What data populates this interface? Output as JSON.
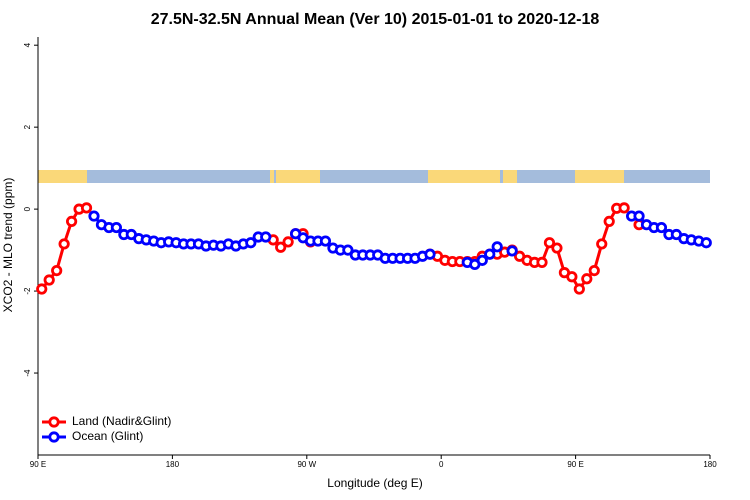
{
  "chart_data": {
    "type": "line",
    "title": "27.5N-32.5N Annual Mean (Ver 10)   2015-01-01 to 2020-12-18",
    "x_label": "Longitude (deg E)",
    "y_label": "XCO2 - MLO trend (ppm)",
    "x": [
      92.5,
      97.5,
      102.5,
      107.5,
      112.5,
      117.5,
      122.5,
      127.5,
      132.5,
      137.5,
      142.5,
      147.5,
      152.5,
      157.5,
      162.5,
      167.5,
      172.5,
      177.5,
      182.5,
      187.5,
      192.5,
      197.5,
      202.5,
      207.5,
      212.5,
      217.5,
      222.5,
      227.5,
      232.5,
      237.5,
      242.5,
      247.5,
      252.5,
      257.5,
      262.5,
      267.5,
      272.5,
      277.5,
      282.5,
      287.5,
      292.5,
      297.5,
      302.5,
      307.5,
      312.5,
      317.5,
      322.5,
      327.5,
      332.5,
      337.5,
      342.5,
      347.5,
      352.5,
      357.5,
      362.5,
      367.5,
      372.5,
      377.5,
      382.5,
      387.5,
      392.5,
      397.5,
      402.5,
      407.5,
      412.5,
      417.5,
      422.5,
      427.5,
      432.5,
      437.5,
      442.5,
      447.5,
      452.5,
      457.5,
      462.5,
      467.5,
      472.5,
      477.5,
      482.5,
      487.5,
      492.5,
      497.5,
      502.5,
      507.5,
      512.5,
      517.5,
      522.5,
      527.5,
      532.5,
      537.5
    ],
    "series": [
      {
        "name": "Land (Nadir&Glint)",
        "color": "#ff0000",
        "values": [
          -1.95,
          -1.73,
          -1.5,
          -0.85,
          -0.3,
          0.0,
          0.03,
          null,
          null,
          null,
          null,
          null,
          null,
          null,
          null,
          null,
          null,
          null,
          null,
          null,
          null,
          null,
          null,
          null,
          null,
          null,
          null,
          null,
          null,
          null,
          null,
          -0.75,
          -0.93,
          -0.8,
          -0.6,
          -0.6,
          -0.8,
          null,
          null,
          null,
          null,
          null,
          null,
          null,
          null,
          null,
          null,
          null,
          null,
          null,
          null,
          null,
          -1.1,
          -1.15,
          -1.25,
          -1.28,
          -1.28,
          -1.28,
          -1.28,
          -1.15,
          -1.1,
          -1.1,
          -1.05,
          -1.0,
          -1.15,
          -1.25,
          -1.3,
          -1.3,
          -0.82,
          -0.95,
          -1.55,
          -1.65,
          -1.95,
          -1.7,
          -1.5,
          -0.85,
          -0.3,
          0.02,
          0.03,
          null,
          -0.38,
          null,
          null,
          null,
          null,
          null,
          null,
          null,
          null,
          null
        ]
      },
      {
        "name": "Ocean (Glint)",
        "color": "#0000ff",
        "values": [
          null,
          null,
          null,
          null,
          null,
          null,
          null,
          -0.17,
          -0.38,
          -0.45,
          -0.45,
          -0.62,
          -0.62,
          -0.72,
          -0.75,
          -0.78,
          -0.82,
          -0.8,
          -0.82,
          -0.85,
          -0.85,
          -0.85,
          -0.9,
          -0.88,
          -0.9,
          -0.85,
          -0.9,
          -0.85,
          -0.82,
          -0.68,
          -0.68,
          null,
          null,
          null,
          -0.6,
          -0.7,
          -0.78,
          -0.78,
          -0.78,
          -0.95,
          -1.0,
          -1.0,
          -1.12,
          -1.12,
          -1.12,
          -1.12,
          -1.2,
          -1.2,
          -1.2,
          -1.2,
          -1.2,
          -1.15,
          -1.1,
          null,
          null,
          null,
          null,
          -1.3,
          -1.35,
          -1.25,
          -1.1,
          -0.92,
          null,
          -1.02,
          null,
          null,
          null,
          null,
          null,
          null,
          null,
          null,
          null,
          null,
          null,
          null,
          null,
          null,
          null,
          -0.17,
          -0.17,
          -0.38,
          -0.45,
          -0.45,
          -0.62,
          -0.62,
          -0.72,
          -0.75,
          -0.78,
          -0.82
        ]
      }
    ],
    "xlim": [
      90,
      540
    ],
    "xticks": [
      {
        "value": 90,
        "label": "90 E"
      },
      180,
      {
        "value": 270,
        "label": "90 W"
      },
      {
        "value": 360,
        "label": "0"
      },
      {
        "value": 450,
        "label": "90 E"
      },
      {
        "value": 540,
        "label": "180"
      }
    ],
    "ylim": [
      -6,
      4.2
    ],
    "yticks": [
      4,
      2,
      0,
      -2,
      -4
    ],
    "legend": "bottom-left"
  }
}
